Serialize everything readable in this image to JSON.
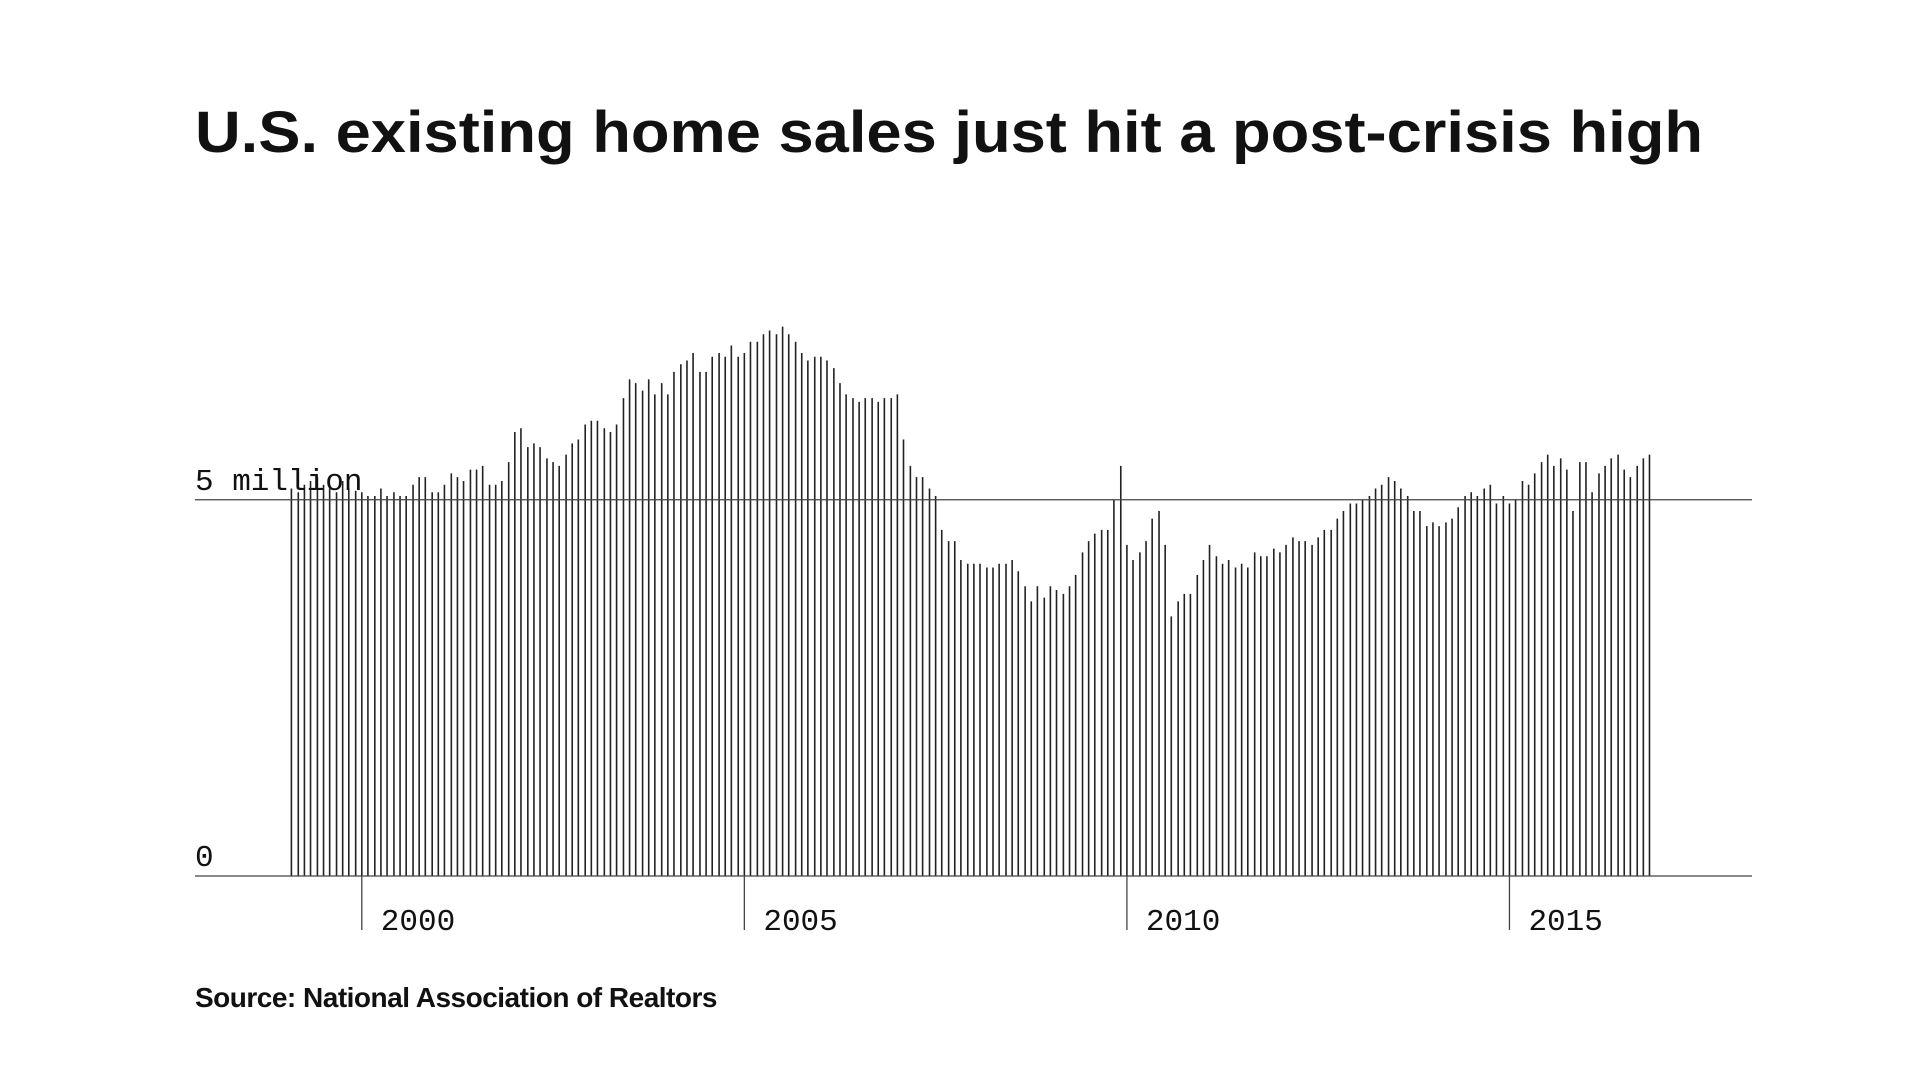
{
  "chart_data": {
    "type": "bar",
    "title": "U.S. existing home sales just hit a post-crisis high",
    "source": "Source: National Association of Realtors",
    "color": "#222222",
    "xlim": [
      1997.82,
      2018.17
    ],
    "xticks": [
      2000,
      2005,
      2010,
      2015
    ],
    "ylim": [
      0,
      8
    ],
    "yticks": [
      0,
      {
        "value": 5,
        "label": "5 million"
      }
    ],
    "grid": true,
    "x": [
      1999.08,
      1999.17,
      1999.25,
      1999.33,
      1999.42,
      1999.5,
      1999.58,
      1999.67,
      1999.75,
      1999.83,
      1999.92,
      2000.0,
      2000.08,
      2000.17,
      2000.25,
      2000.33,
      2000.42,
      2000.5,
      2000.58,
      2000.67,
      2000.75,
      2000.83,
      2000.92,
      2001.0,
      2001.08,
      2001.17,
      2001.25,
      2001.33,
      2001.42,
      2001.5,
      2001.58,
      2001.67,
      2001.75,
      2001.83,
      2001.92,
      2002.0,
      2002.08,
      2002.17,
      2002.25,
      2002.33,
      2002.42,
      2002.5,
      2002.58,
      2002.67,
      2002.75,
      2002.83,
      2002.92,
      2003.0,
      2003.08,
      2003.17,
      2003.25,
      2003.33,
      2003.42,
      2003.5,
      2003.58,
      2003.67,
      2003.75,
      2003.83,
      2003.92,
      2004.0,
      2004.08,
      2004.17,
      2004.25,
      2004.33,
      2004.42,
      2004.5,
      2004.58,
      2004.67,
      2004.75,
      2004.83,
      2004.92,
      2005.0,
      2005.08,
      2005.17,
      2005.25,
      2005.33,
      2005.42,
      2005.5,
      2005.58,
      2005.67,
      2005.75,
      2005.83,
      2005.92,
      2006.0,
      2006.08,
      2006.17,
      2006.25,
      2006.33,
      2006.42,
      2006.5,
      2006.58,
      2006.67,
      2006.75,
      2006.83,
      2006.92,
      2007.0,
      2007.08,
      2007.17,
      2007.25,
      2007.33,
      2007.42,
      2007.5,
      2007.58,
      2007.67,
      2007.75,
      2007.83,
      2007.92,
      2008.0,
      2008.08,
      2008.17,
      2008.25,
      2008.33,
      2008.42,
      2008.5,
      2008.58,
      2008.67,
      2008.75,
      2008.83,
      2008.92,
      2009.0,
      2009.08,
      2009.17,
      2009.25,
      2009.33,
      2009.42,
      2009.5,
      2009.58,
      2009.67,
      2009.75,
      2009.83,
      2009.92,
      2010.0,
      2010.08,
      2010.17,
      2010.25,
      2010.33,
      2010.42,
      2010.5,
      2010.58,
      2010.67,
      2010.75,
      2010.83,
      2010.92,
      2011.0,
      2011.08,
      2011.17,
      2011.25,
      2011.33,
      2011.42,
      2011.5,
      2011.58,
      2011.67,
      2011.75,
      2011.83,
      2011.92,
      2012.0,
      2012.08,
      2012.17,
      2012.25,
      2012.33,
      2012.42,
      2012.5,
      2012.58,
      2012.67,
      2012.75,
      2012.83,
      2012.92,
      2013.0,
      2013.08,
      2013.17,
      2013.25,
      2013.33,
      2013.42,
      2013.5,
      2013.58,
      2013.67,
      2013.75,
      2013.83,
      2013.92,
      2014.0,
      2014.08,
      2014.17,
      2014.25,
      2014.33,
      2014.42,
      2014.5,
      2014.58,
      2014.67,
      2014.75,
      2014.83,
      2014.92,
      2015.0,
      2015.08,
      2015.17,
      2015.25,
      2015.33,
      2015.42,
      2015.5,
      2015.58,
      2015.67,
      2015.75,
      2015.83,
      2015.92,
      2016.0,
      2016.08,
      2016.17,
      2016.25,
      2016.33,
      2016.42,
      2016.5,
      2016.58,
      2016.67,
      2016.75,
      2016.83
    ],
    "values": [
      5.15,
      5.1,
      5.2,
      5.25,
      5.3,
      5.2,
      5.15,
      5.1,
      5.25,
      5.15,
      5.12,
      5.1,
      5.05,
      5.05,
      5.15,
      5.05,
      5.1,
      5.05,
      5.05,
      5.2,
      5.3,
      5.3,
      5.1,
      5.1,
      5.2,
      5.35,
      5.3,
      5.25,
      5.4,
      5.4,
      5.45,
      5.2,
      5.2,
      5.25,
      5.5,
      5.9,
      5.95,
      5.7,
      5.75,
      5.7,
      5.55,
      5.5,
      5.45,
      5.6,
      5.75,
      5.8,
      6.0,
      6.05,
      6.05,
      5.95,
      5.9,
      6.0,
      6.35,
      6.6,
      6.55,
      6.45,
      6.6,
      6.4,
      6.55,
      6.4,
      6.7,
      6.8,
      6.85,
      6.95,
      6.7,
      6.7,
      6.9,
      6.95,
      6.9,
      7.05,
      6.9,
      6.95,
      7.1,
      7.1,
      7.2,
      7.25,
      7.2,
      7.3,
      7.2,
      7.1,
      6.95,
      6.85,
      6.9,
      6.9,
      6.85,
      6.75,
      6.55,
      6.4,
      6.35,
      6.3,
      6.35,
      6.35,
      6.3,
      6.35,
      6.35,
      6.4,
      5.8,
      5.45,
      5.3,
      5.3,
      5.15,
      5.05,
      4.6,
      4.45,
      4.45,
      4.2,
      4.15,
      4.15,
      4.15,
      4.1,
      4.1,
      4.15,
      4.15,
      4.2,
      4.05,
      3.85,
      3.65,
      3.85,
      3.7,
      3.85,
      3.8,
      3.75,
      3.85,
      4.0,
      4.3,
      4.45,
      4.55,
      4.6,
      4.6,
      5.0,
      5.45,
      4.4,
      4.2,
      4.3,
      4.45,
      4.75,
      4.85,
      4.4,
      3.45,
      3.65,
      3.75,
      3.75,
      4.0,
      4.2,
      4.4,
      4.25,
      4.15,
      4.2,
      4.1,
      4.15,
      4.1,
      4.3,
      4.25,
      4.25,
      4.35,
      4.3,
      4.4,
      4.5,
      4.45,
      4.45,
      4.4,
      4.5,
      4.6,
      4.6,
      4.75,
      4.85,
      4.95,
      4.95,
      5.0,
      5.05,
      5.15,
      5.2,
      5.3,
      5.25,
      5.15,
      5.05,
      4.85,
      4.85,
      4.65,
      4.7,
      4.65,
      4.7,
      4.75,
      4.9,
      5.05,
      5.1,
      5.05,
      5.15,
      5.2,
      4.95,
      5.05,
      4.95,
      5.0,
      5.25,
      5.2,
      5.35,
      5.5,
      5.6,
      5.45,
      5.55,
      5.4,
      4.85,
      5.5,
      5.5,
      5.1,
      5.35,
      5.45,
      5.55,
      5.6,
      5.4,
      5.3,
      5.45,
      5.55,
      5.6
    ]
  }
}
